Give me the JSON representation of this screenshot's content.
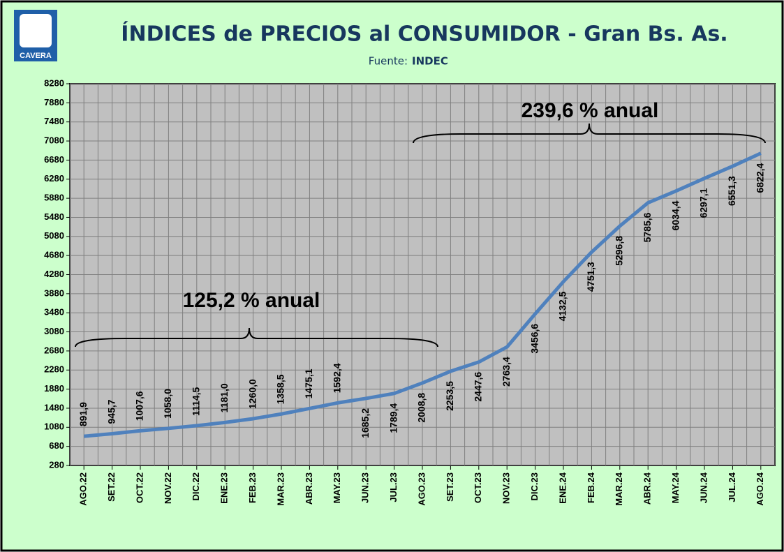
{
  "logo": "CAVERA",
  "chart_data": {
    "type": "line",
    "title": "ÍNDICES de PRECIOS al CONSUMIDOR -  Gran Bs. As.",
    "subtitle_label": "Fuente:",
    "subtitle_source": "INDEC",
    "categories": [
      "AGO.22",
      "SET.22",
      "OCT.22",
      "NOV.22",
      "DIC.22",
      "ENE.23",
      "FEB.23",
      "MAR.23",
      "ABR.23",
      "MAY.23",
      "JUN.23",
      "JUL.23",
      "AGO.23",
      "SET.23",
      "OCT.23",
      "NOV.23",
      "DIC.23",
      "ENE.24",
      "FEB.24",
      "MAR.24",
      "ABR.24",
      "MAY.24",
      "JUN.24",
      "JUL.24",
      "AGO.24"
    ],
    "series": [
      {
        "name": "IPC",
        "color": "#4f81bd",
        "values": [
          891.9,
          945.7,
          1007.6,
          1058.0,
          1114.5,
          1181.0,
          1260.0,
          1358.5,
          1475.1,
          1592.4,
          1685.2,
          1789.4,
          2008.8,
          2253.5,
          2447.6,
          2763.4,
          3456.6,
          4132.5,
          4751.3,
          5296.8,
          5785.6,
          6034.4,
          6297.1,
          6551.3,
          6822.4
        ],
        "value_labels": [
          "891,9",
          "945,7",
          "1007,6",
          "1058,0",
          "1114,5",
          "1181,0",
          "1260,0",
          "1358,5",
          "1475,1",
          "1592,4",
          "1685,2",
          "1789,4",
          "2008,8",
          "2253,5",
          "2447,6",
          "2763,4",
          "3456,6",
          "4132,5",
          "4751,3",
          "5296,8",
          "5785,6",
          "6034,4",
          "6297,1",
          "6551,3",
          "6822,4"
        ]
      }
    ],
    "ylim": [
      280,
      8280
    ],
    "yticks": [
      280,
      680,
      1080,
      1480,
      1880,
      2280,
      2680,
      3080,
      3480,
      3880,
      4280,
      4680,
      5080,
      5480,
      5880,
      6280,
      6680,
      7080,
      7480,
      7880,
      8280
    ],
    "grid": true,
    "annotations": [
      "125,2 %  anual",
      "239,6 % anual"
    ]
  }
}
